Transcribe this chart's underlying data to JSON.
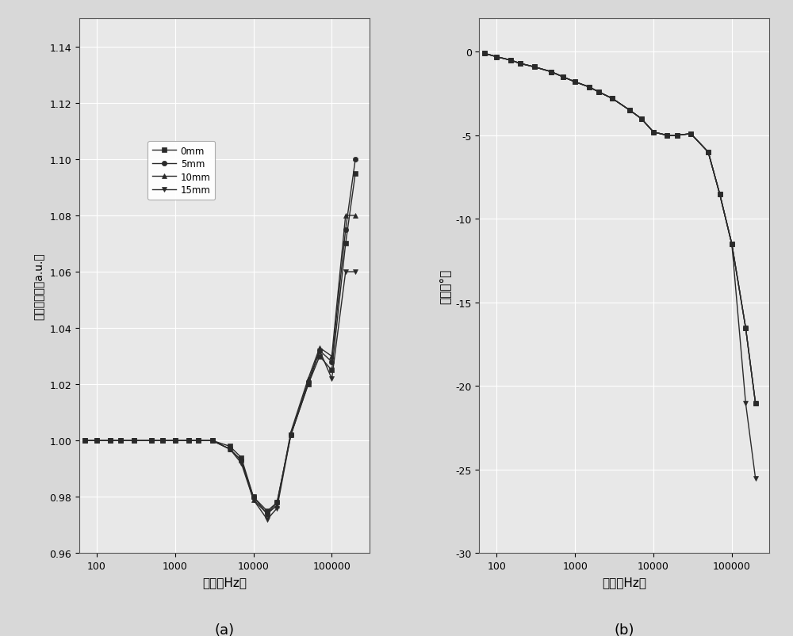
{
  "freq": [
    70,
    100,
    150,
    200,
    300,
    500,
    700,
    1000,
    1500,
    2000,
    3000,
    5000,
    7000,
    10000,
    15000,
    20000,
    30000,
    50000,
    70000,
    100000,
    150000,
    200000
  ],
  "amp_0mm": [
    1.0,
    1.0,
    1.0,
    1.0,
    1.0,
    1.0,
    1.0,
    1.0,
    1.0,
    1.0,
    1.0,
    0.998,
    0.994,
    0.98,
    0.975,
    0.978,
    1.002,
    1.02,
    1.03,
    1.025,
    1.07,
    1.095
  ],
  "amp_5mm": [
    1.0,
    1.0,
    1.0,
    1.0,
    1.0,
    1.0,
    1.0,
    1.0,
    1.0,
    1.0,
    1.0,
    0.997,
    0.993,
    0.98,
    0.974,
    0.978,
    1.002,
    1.021,
    1.032,
    1.028,
    1.075,
    1.1
  ],
  "amp_10mm": [
    1.0,
    1.0,
    1.0,
    1.0,
    1.0,
    1.0,
    1.0,
    1.0,
    1.0,
    1.0,
    1.0,
    0.997,
    0.993,
    0.979,
    0.974,
    0.977,
    1.003,
    1.022,
    1.033,
    1.03,
    1.08,
    1.08
  ],
  "amp_15mm": [
    1.0,
    1.0,
    1.0,
    1.0,
    1.0,
    1.0,
    1.0,
    1.0,
    1.0,
    1.0,
    1.0,
    0.997,
    0.992,
    0.979,
    0.972,
    0.976,
    1.002,
    1.02,
    1.032,
    1.022,
    1.06,
    1.06
  ],
  "phase_0mm": [
    -0.1,
    -0.3,
    -0.5,
    -0.7,
    -0.9,
    -1.2,
    -1.5,
    -1.8,
    -2.1,
    -2.4,
    -2.8,
    -3.5,
    -4.0,
    -4.8,
    -5.0,
    -5.0,
    -4.9,
    -6.0,
    -8.5,
    -11.5,
    -16.5,
    -21.0
  ],
  "phase_5mm": [
    -0.1,
    -0.3,
    -0.5,
    -0.7,
    -0.9,
    -1.2,
    -1.5,
    -1.8,
    -2.1,
    -2.4,
    -2.8,
    -3.5,
    -4.0,
    -4.8,
    -5.0,
    -5.0,
    -4.9,
    -6.0,
    -8.5,
    -11.5,
    -16.5,
    -21.0
  ],
  "phase_10mm": [
    -0.1,
    -0.3,
    -0.5,
    -0.7,
    -0.9,
    -1.2,
    -1.5,
    -1.8,
    -2.1,
    -2.4,
    -2.8,
    -3.5,
    -4.0,
    -4.8,
    -5.0,
    -5.0,
    -4.9,
    -6.0,
    -8.5,
    -11.5,
    -16.5,
    -21.0
  ],
  "phase_15mm": [
    -0.1,
    -0.3,
    -0.5,
    -0.7,
    -0.9,
    -1.2,
    -1.5,
    -1.8,
    -2.1,
    -2.4,
    -2.8,
    -3.5,
    -4.0,
    -4.8,
    -5.0,
    -5.0,
    -4.9,
    -6.0,
    -8.5,
    -11.5,
    -21.0,
    -25.5
  ],
  "xlabel": "频率（Hz）",
  "ylabel_a": "归一化幅値（a.u.）",
  "ylabel_b": "相位（°）",
  "label_a": "(a)",
  "label_b": "(b)",
  "legend_0mm": "0mm",
  "legend_5mm": "5mm",
  "legend_10mm": "10mm",
  "legend_15mm": "15mm",
  "xlim": [
    60,
    300000
  ],
  "ylim_a": [
    0.96,
    1.15
  ],
  "ylim_b": [
    -30,
    2
  ],
  "yticks_a": [
    0.96,
    0.98,
    1.0,
    1.02,
    1.04,
    1.06,
    1.08,
    1.1,
    1.12,
    1.14
  ],
  "yticks_b": [
    0,
    -5,
    -10,
    -15,
    -20,
    -25,
    -30
  ],
  "xticks": [
    100,
    1000,
    10000,
    100000
  ],
  "xticklabels": [
    "100",
    "1000",
    "10000",
    "100000"
  ],
  "line_color": "#2a2a2a",
  "bg_color": "#e8e8e8",
  "fig_bg_color": "#d8d8d8"
}
